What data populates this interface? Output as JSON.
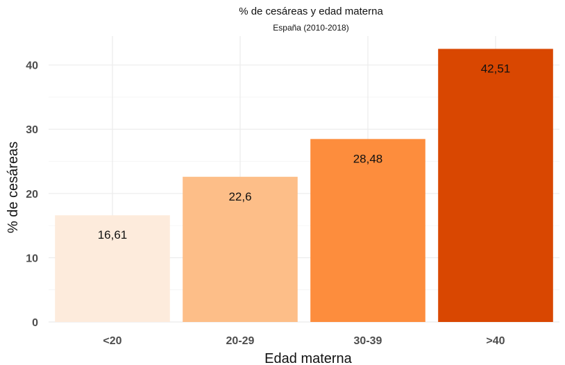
{
  "chart_data": {
    "type": "bar",
    "title": "% de cesáreas y edad materna",
    "subtitle": "España (2010-2018)",
    "xlabel": "Edad materna",
    "ylabel": "% de cesáreas",
    "categories": [
      "<20",
      "20-29",
      "30-39",
      ">40"
    ],
    "values": [
      16.61,
      22.6,
      28.48,
      42.51
    ],
    "data_labels": [
      "16,61",
      "22,6",
      "28,48",
      "42,51"
    ],
    "colors": [
      "#fdebdc",
      "#fdbe88",
      "#fd8d3d",
      "#d94701"
    ],
    "ylim": [
      0,
      44.5
    ],
    "yticks": [
      0,
      10,
      20,
      30,
      40
    ],
    "ytick_labels": [
      "0",
      "10",
      "20",
      "30",
      "40"
    ],
    "grid": true,
    "legend": "none"
  }
}
